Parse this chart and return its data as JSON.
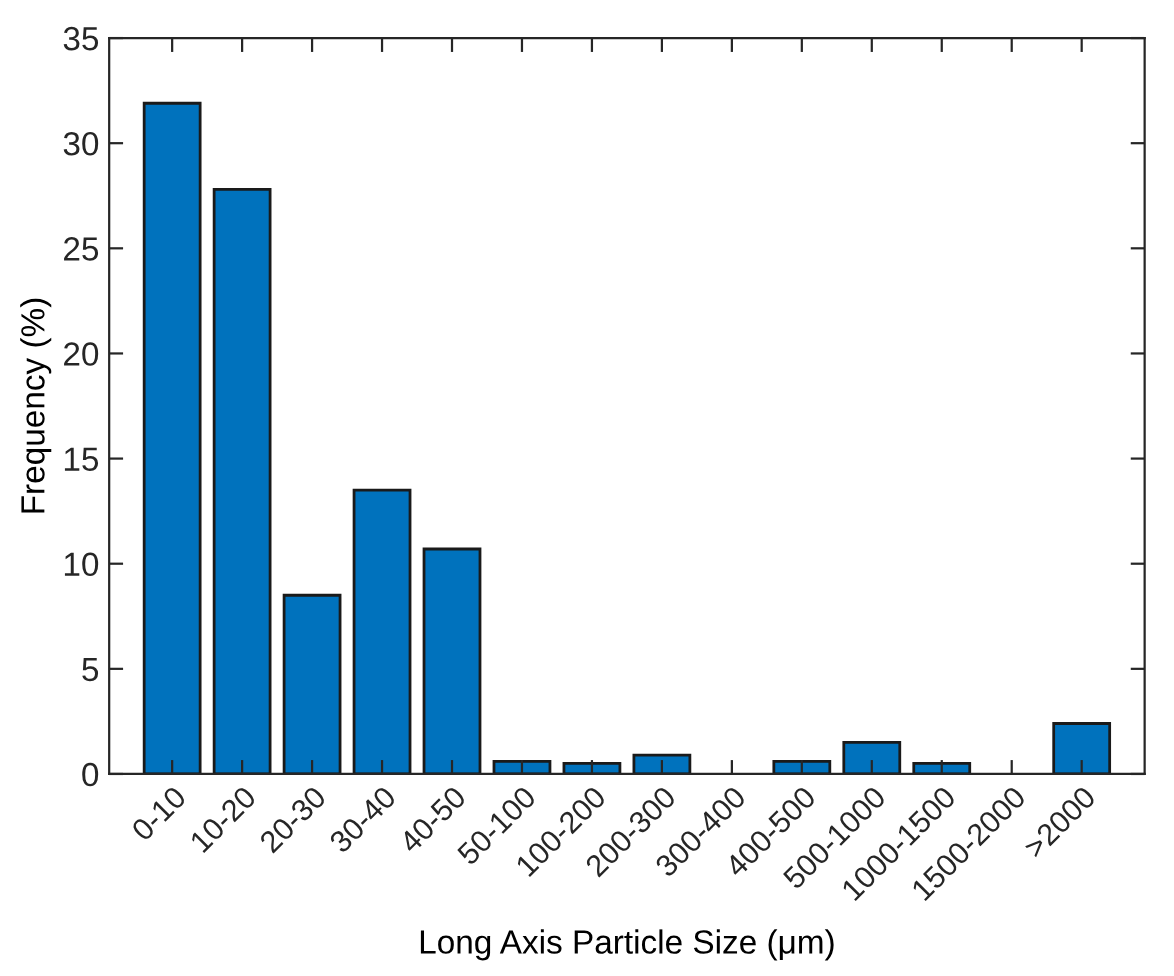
{
  "chart_data": {
    "type": "bar",
    "xlabel": "Long Axis Particle Size (μm)",
    "ylabel": "Frequency (%)",
    "categories": [
      "0-10",
      "10-20",
      "20-30",
      "30-40",
      "40-50",
      "50-100",
      "100-200",
      "200-300",
      "300-400",
      "400-500",
      "500-1000",
      "1000-1500",
      "1500-2000",
      ">2000"
    ],
    "values": [
      31.9,
      27.8,
      8.5,
      13.5,
      10.7,
      0.6,
      0.5,
      0.9,
      0,
      0.6,
      1.5,
      0.5,
      0,
      2.4
    ],
    "color": "#0072bd",
    "ylim": [
      0,
      35
    ],
    "yticks": [
      0,
      5,
      10,
      15,
      20,
      25,
      30,
      35
    ],
    "grid": false,
    "legend": false
  }
}
